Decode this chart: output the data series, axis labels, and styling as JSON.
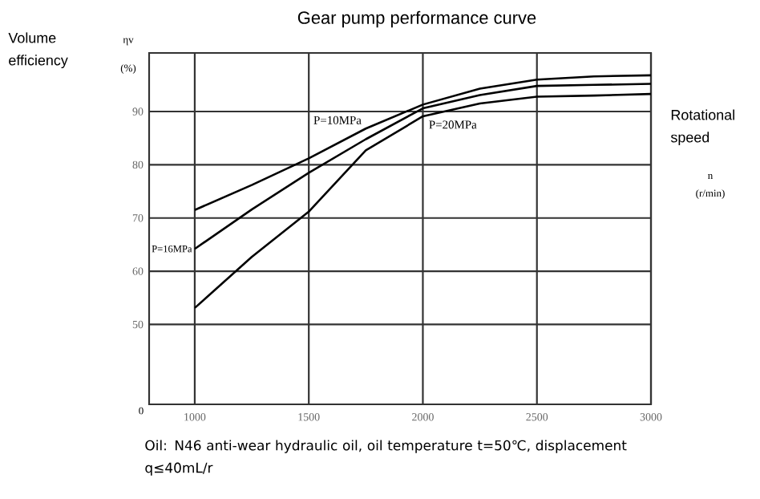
{
  "chart_data": {
    "type": "line",
    "title": "Gear pump performance curve",
    "xlabel": "Rotational speed",
    "ylabel": "Volume efficiency",
    "annotations": [
      "ηv",
      "(%)",
      "n",
      "(r/min)",
      "Oil: N46 anti-wear hydraulic oil, oil temperature t=50℃, displacement q≤40mL/r",
      "0"
    ],
    "x": [
      1000,
      1250,
      1500,
      1750,
      2000,
      2250,
      2500,
      2750,
      3000
    ],
    "series": [
      {
        "name": "P=10MPa",
        "color": "#000000",
        "values": [
          71.5,
          76.2,
          81.2,
          86.8,
          91.3,
          94.3,
          96.0,
          96.6,
          96.8
        ]
      },
      {
        "name": "P=16MPa",
        "color": "#000000",
        "values": [
          64.2,
          71.6,
          78.5,
          84.8,
          90.6,
          93.1,
          94.8,
          95.0,
          95.2
        ]
      },
      {
        "name": "P=20MPa",
        "color": "#000000",
        "values": [
          53.1,
          62.7,
          71.2,
          82.7,
          89.1,
          91.5,
          92.8,
          93.0,
          93.3
        ]
      }
    ],
    "xlim": [
      800,
      3000
    ],
    "xticks": [
      1000,
      1500,
      2000,
      2500,
      3000
    ],
    "ylim": [
      35,
      101
    ],
    "yticks": [
      50,
      60,
      70,
      80,
      90
    ],
    "grid": true,
    "legend": false,
    "marker": "none",
    "line_style": "solid"
  }
}
